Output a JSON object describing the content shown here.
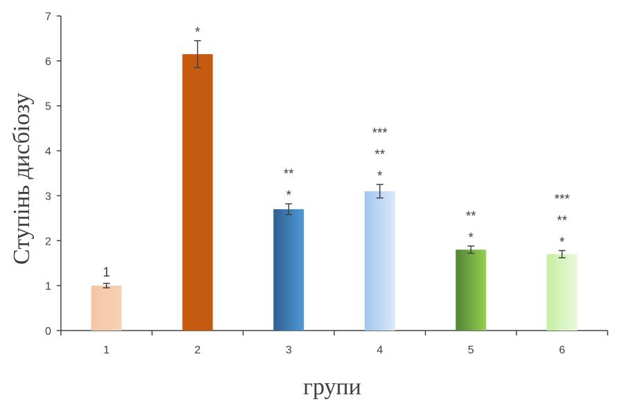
{
  "chart_data": {
    "type": "bar",
    "title": "",
    "xlabel": "групи",
    "ylabel": "Ступінь дисбіозу",
    "categories": [
      "1",
      "2",
      "3",
      "4",
      "5",
      "6"
    ],
    "values": [
      1.0,
      6.15,
      2.7,
      3.1,
      1.8,
      1.7
    ],
    "errors": [
      0.05,
      0.3,
      0.12,
      0.15,
      0.08,
      0.08
    ],
    "annotations": [
      [
        "1"
      ],
      [
        "*"
      ],
      [
        "**",
        "*"
      ],
      [
        "***",
        "**",
        "*"
      ],
      [
        "**",
        "*"
      ],
      [
        "***",
        "**",
        "*"
      ]
    ],
    "ylim": [
      0,
      7
    ],
    "yticks": [
      "0",
      "1",
      "2",
      "3",
      "4",
      "5",
      "6",
      "7"
    ],
    "grid": false,
    "legend": "none",
    "bar_colors": [
      [
        "#f5c6a5",
        "#f8d0b5"
      ],
      [
        "#c55a11",
        "#c55a11"
      ],
      [
        "#2e5f8f",
        "#4f9ad8"
      ],
      [
        "#9fc5ee",
        "#dbe9f9"
      ],
      [
        "#548235",
        "#92d050"
      ],
      [
        "#c5eea0",
        "#e8f9da"
      ]
    ],
    "errorbar_color": "#404040"
  }
}
